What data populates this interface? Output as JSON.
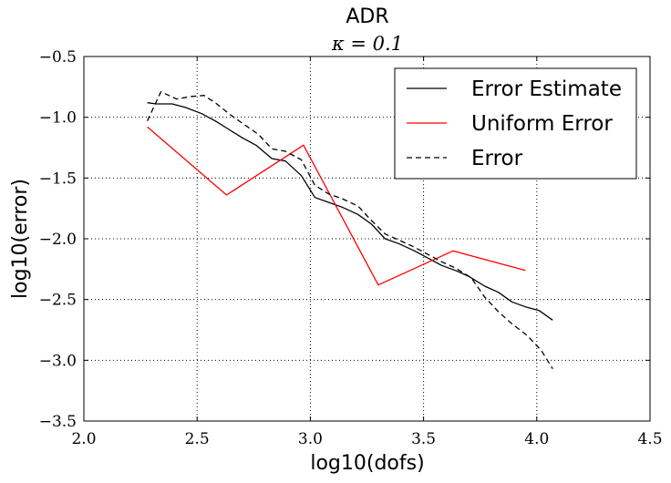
{
  "chart_data": {
    "type": "line",
    "title": "ADR",
    "subtitle": "κ = 0.1",
    "xlabel": "log10(dofs)",
    "ylabel": "log10(error)",
    "xlim": [
      2.0,
      4.5
    ],
    "ylim": [
      -3.5,
      -0.5
    ],
    "x_ticks": [
      2.0,
      2.5,
      3.0,
      3.5,
      4.0,
      4.5
    ],
    "x_tick_labels": [
      "2.0",
      "2.5",
      "3.0",
      "3.5",
      "4.0",
      "4.5"
    ],
    "y_ticks": [
      -3.5,
      -3.0,
      -2.5,
      -2.0,
      -1.5,
      -1.0,
      -0.5
    ],
    "y_tick_labels": [
      "−3.5",
      "−3.0",
      "−2.5",
      "−2.0",
      "−1.5",
      "−1.0",
      "−0.5"
    ],
    "grid": true,
    "legend_position": "top-right",
    "series": [
      {
        "name": "Error Estimate",
        "color": "#000000",
        "dash": "solid",
        "x": [
          2.28,
          2.32,
          2.39,
          2.45,
          2.52,
          2.58,
          2.64,
          2.7,
          2.76,
          2.83,
          2.89,
          2.96,
          3.02,
          3.08,
          3.14,
          3.21,
          3.27,
          3.33,
          3.39,
          3.46,
          3.52,
          3.58,
          3.64,
          3.7,
          3.77,
          3.83,
          3.89,
          3.95,
          4.01,
          4.07
        ],
        "y": [
          -0.88,
          -0.89,
          -0.89,
          -0.92,
          -0.97,
          -1.03,
          -1.1,
          -1.17,
          -1.23,
          -1.34,
          -1.36,
          -1.48,
          -1.66,
          -1.7,
          -1.74,
          -1.8,
          -1.88,
          -2.0,
          -2.04,
          -2.1,
          -2.16,
          -2.22,
          -2.26,
          -2.31,
          -2.39,
          -2.44,
          -2.52,
          -2.56,
          -2.59,
          -2.67
        ]
      },
      {
        "name": "Uniform Error",
        "color": "#ff0000",
        "dash": "solid",
        "x": [
          2.28,
          2.63,
          2.97,
          3.3,
          3.63,
          3.95
        ],
        "y": [
          -1.08,
          -1.64,
          -1.23,
          -2.38,
          -2.1,
          -2.26
        ]
      },
      {
        "name": "Error",
        "color": "#000000",
        "dash": "dashed",
        "x": [
          2.28,
          2.34,
          2.41,
          2.47,
          2.53,
          2.58,
          2.64,
          2.7,
          2.77,
          2.83,
          2.89,
          2.96,
          3.02,
          3.08,
          3.14,
          3.21,
          3.27,
          3.33,
          3.39,
          3.46,
          3.52,
          3.58,
          3.64,
          3.71,
          3.77,
          3.83,
          3.89,
          3.96,
          4.02,
          4.07
        ],
        "y": [
          -1.03,
          -0.79,
          -0.85,
          -0.83,
          -0.82,
          -0.88,
          -0.97,
          -1.05,
          -1.14,
          -1.26,
          -1.28,
          -1.35,
          -1.56,
          -1.63,
          -1.67,
          -1.73,
          -1.85,
          -1.96,
          -2.01,
          -2.07,
          -2.13,
          -2.19,
          -2.24,
          -2.32,
          -2.48,
          -2.6,
          -2.7,
          -2.8,
          -2.92,
          -3.07
        ]
      }
    ]
  }
}
